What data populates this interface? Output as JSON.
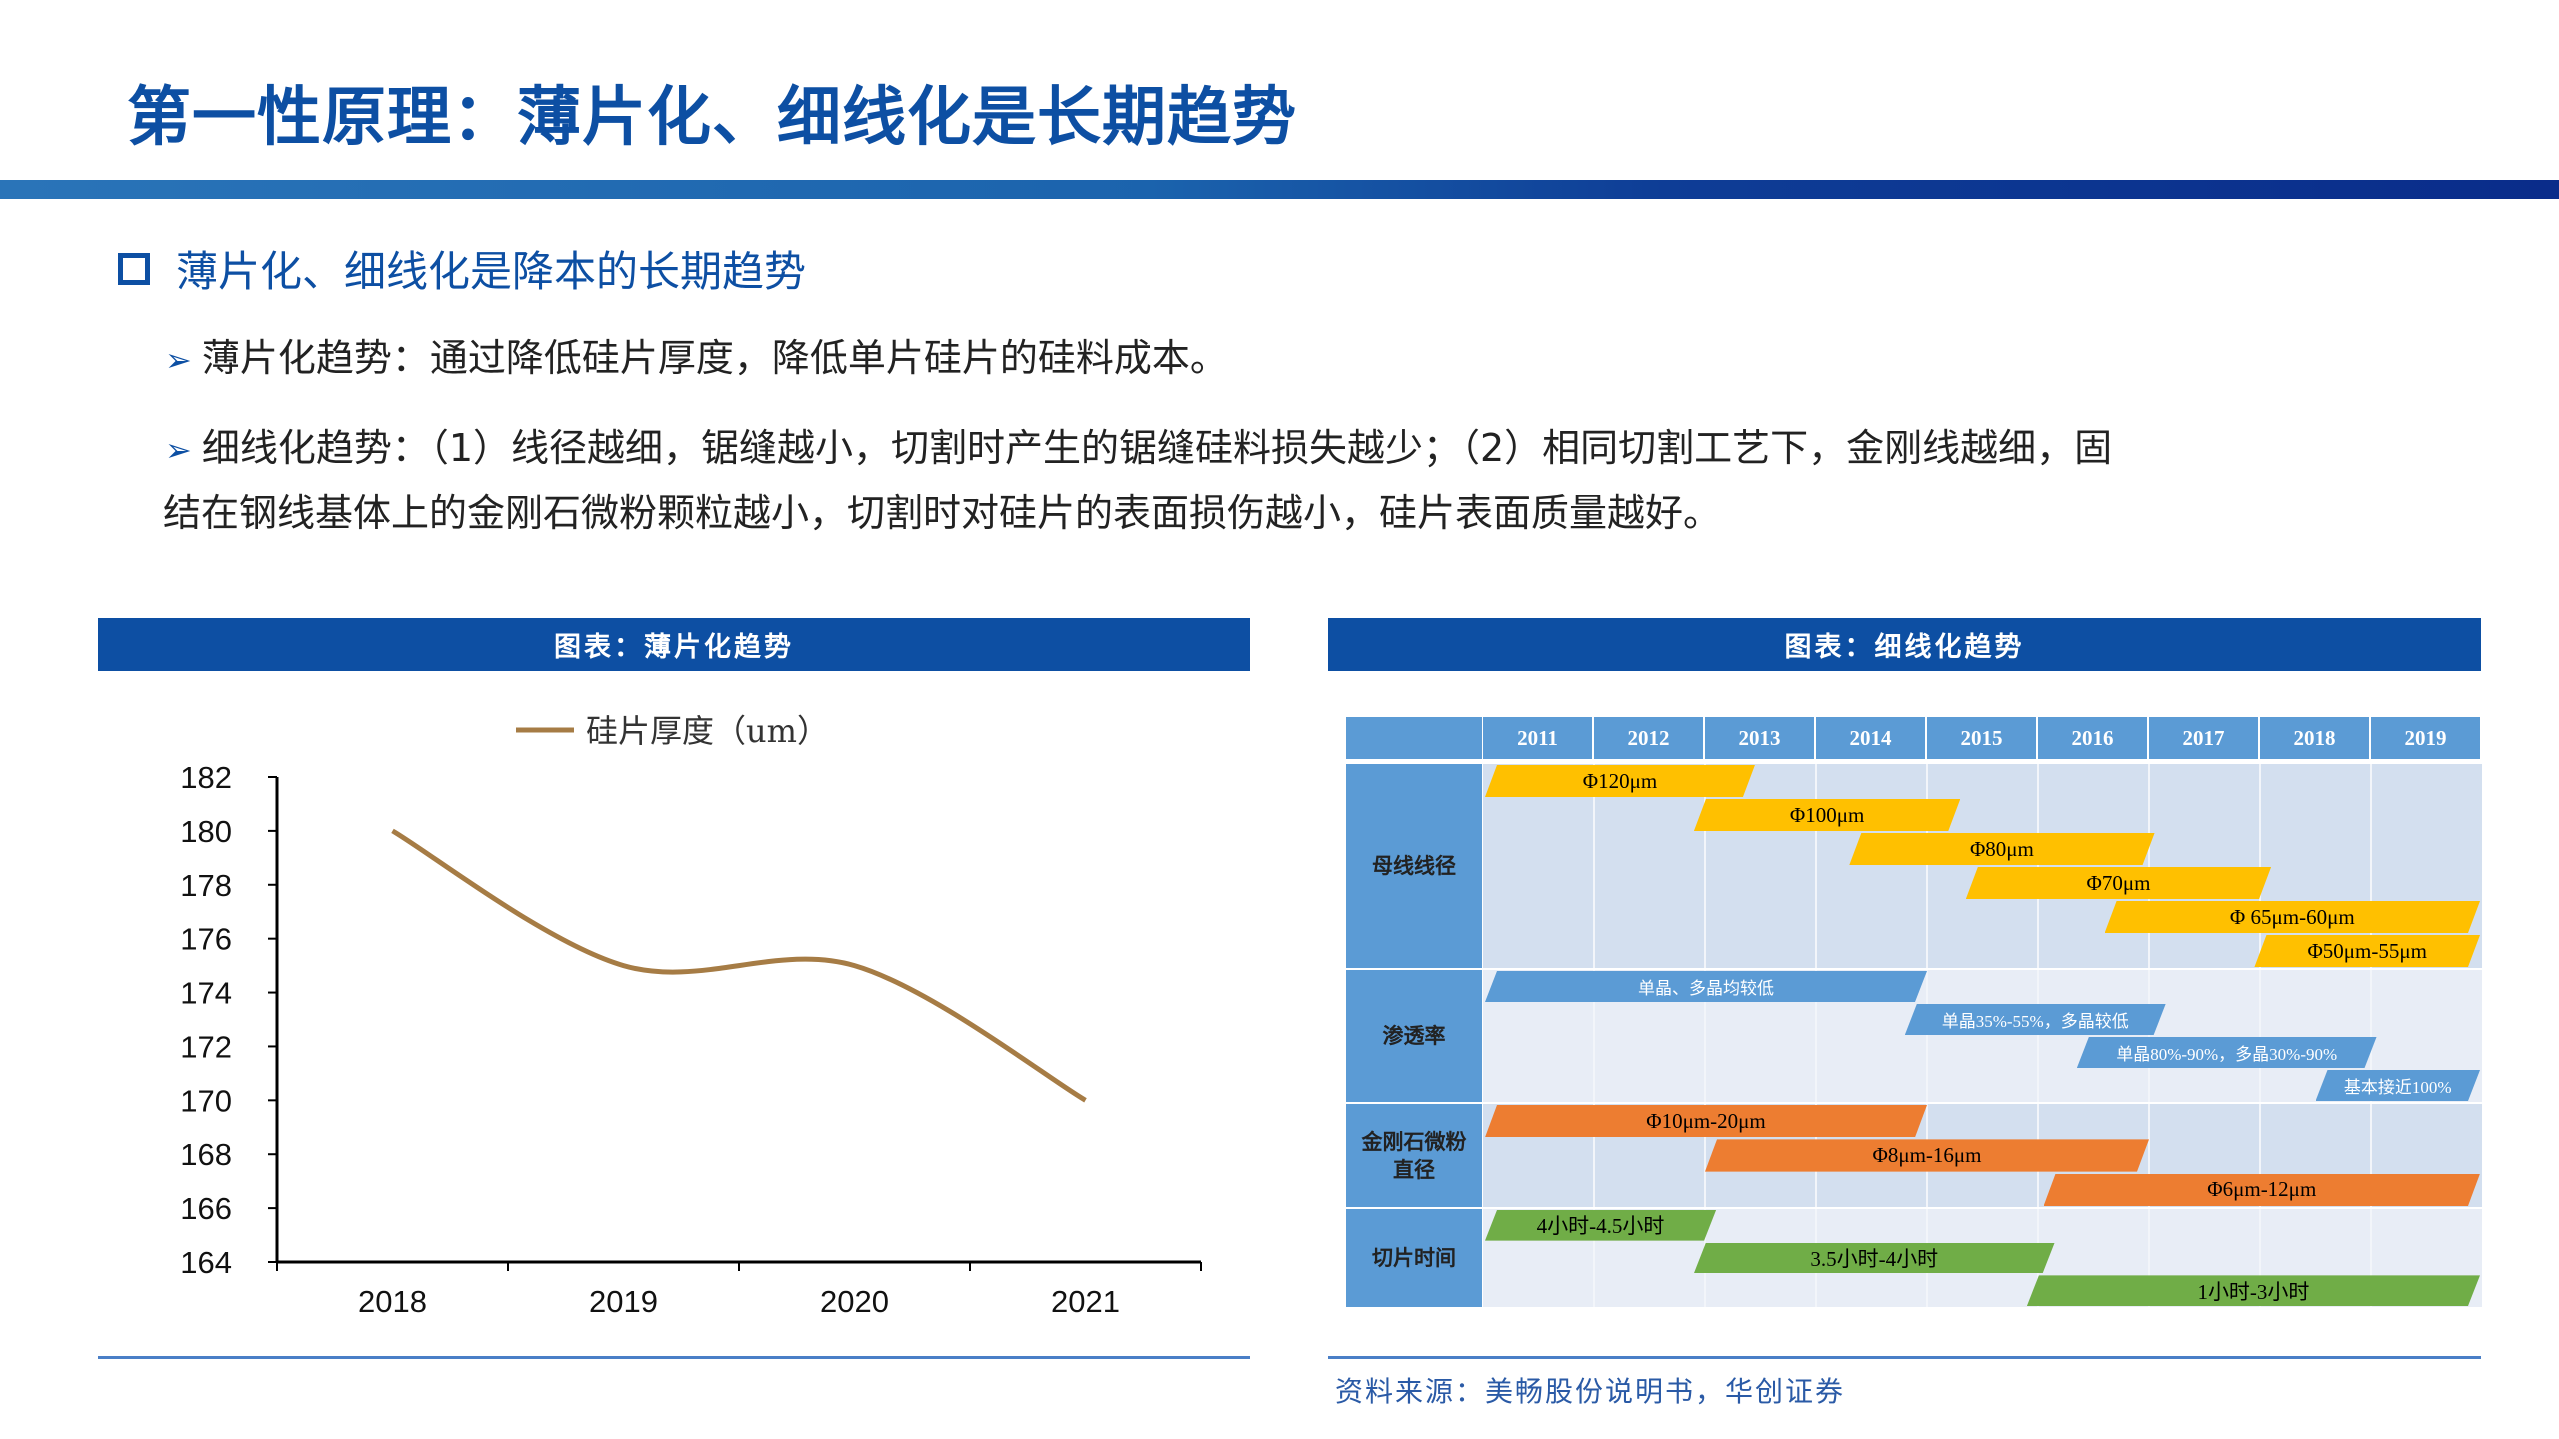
{
  "title": "第一性原理：薄片化、细线化是长期趋势",
  "section_heading": "薄片化、细线化是降本的长期趋势",
  "bullets": [
    {
      "line1": "薄片化趋势：通过降低硅片厚度，降低单片硅片的硅料成本。"
    },
    {
      "line1": "细线化趋势：（1）线径越细，锯缝越小，切割时产生的锯缝硅料损失越少；（2）相同切割工艺下，金刚线越细，固",
      "line2": "结在钢线基体上的金刚石微粉颗粒越小，切割时对硅片的表面损伤越小，硅片表面质量越好。"
    }
  ],
  "left_panel_title": "图表：薄片化趋势",
  "right_panel_title": "图表：细线化趋势",
  "source": "资料来源：美畅股份说明书，华创证券",
  "colors": {
    "brand": "#0d4fa3",
    "line": "#a67c45",
    "gold": "#ffc000",
    "blue": "#5b9bd5",
    "orange": "#ed7d31",
    "green": "#70ad47"
  },
  "chart_data": [
    {
      "type": "line",
      "categories": [
        "2018",
        "2019",
        "2020",
        "2021"
      ],
      "series": [
        {
          "name": "硅片厚度（um）",
          "values": [
            180,
            175,
            175,
            170
          ]
        }
      ],
      "ylim": [
        164,
        182
      ],
      "yticks": [
        "182",
        "180",
        "178",
        "176",
        "174",
        "172",
        "170",
        "168",
        "166",
        "164"
      ],
      "smooth": true,
      "legend": "top",
      "grid": false
    },
    {
      "type": "gantt",
      "years": [
        "2011",
        "2012",
        "2013",
        "2014",
        "2015",
        "2016",
        "2017",
        "2018",
        "2019"
      ],
      "rows": [
        {
          "label": "母线线径",
          "color": "#ffc000",
          "text_color": "#000",
          "bars": [
            {
              "label": "Φ120μm",
              "start": 2011.0,
              "end": 2013.45
            },
            {
              "label": "Φ100μm",
              "start": 2012.9,
              "end": 2015.3
            },
            {
              "label": "Φ80μm",
              "start": 2014.3,
              "end": 2017.05
            },
            {
              "label": "Φ70μm",
              "start": 2015.35,
              "end": 2018.1
            },
            {
              "label": "Φ 65μm-60μm",
              "start": 2016.6,
              "end": 2020.0
            },
            {
              "label": "Φ50μm-55μm",
              "start": 2017.95,
              "end": 2020.0
            }
          ]
        },
        {
          "label": "渗透率",
          "color": "#5b9bd5",
          "text_color": "#fff",
          "bars": [
            {
              "label": "单晶、多晶均较低",
              "start": 2011.0,
              "end": 2015.0
            },
            {
              "label": "单晶35%-55%，多晶较低",
              "start": 2014.8,
              "end": 2017.15
            },
            {
              "label": "单晶80%-90%，多晶30%-90%",
              "start": 2016.35,
              "end": 2019.05
            },
            {
              "label": "基本接近100%",
              "start": 2018.5,
              "end": 2020.0
            }
          ]
        },
        {
          "label": "金刚石微粉直径",
          "label_lines": [
            "金刚石微粉",
            "直径"
          ],
          "color": "#ed7d31",
          "text_color": "#000",
          "bars": [
            {
              "label": "Φ10μm-20μm",
              "start": 2011.0,
              "end": 2015.0
            },
            {
              "label": "Φ8μm-16μm",
              "start": 2013.0,
              "end": 2017.0
            },
            {
              "label": "Φ6μm-12μm",
              "start": 2016.05,
              "end": 2020.0
            }
          ]
        },
        {
          "label": "切片时间",
          "color": "#70ad47",
          "text_color": "#000",
          "bars": [
            {
              "label": "4小时-4.5小时",
              "start": 2011.0,
              "end": 2013.1
            },
            {
              "label": "3.5小时-4小时",
              "start": 2012.9,
              "end": 2016.15
            },
            {
              "label": "1小时-3小时",
              "start": 2015.9,
              "end": 2020.0
            }
          ]
        }
      ]
    }
  ]
}
